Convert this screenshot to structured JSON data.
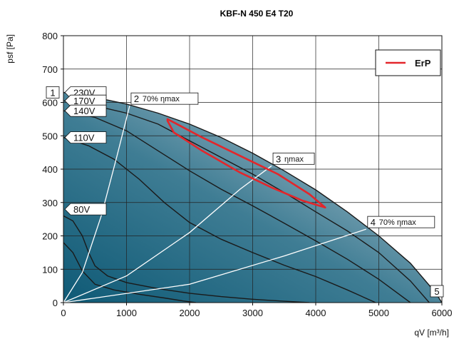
{
  "chart_data": {
    "type": "line",
    "title": "KBF-N 450 E4 T20",
    "xlabel": "qV [m³/h]",
    "ylabel": "psf [Pa]",
    "xlim": [
      0,
      6000
    ],
    "ylim": [
      0,
      800
    ],
    "x_ticks": [
      "0",
      "1000",
      "2000",
      "3000",
      "4000",
      "5000",
      "6000"
    ],
    "y_ticks": [
      "0",
      "100",
      "200",
      "300",
      "400",
      "500",
      "600",
      "700",
      "800"
    ],
    "grid": true,
    "legend": {
      "position": "top-right",
      "entries": [
        {
          "name": "ErP",
          "color": "#e3262b"
        }
      ]
    },
    "colors": {
      "gradient_dark": "#0f5a76",
      "gradient_light": "#c9d2dc",
      "curves": "#1a1a1a",
      "efficiency_lines": "#ffffff",
      "erp": "#e3262b"
    },
    "boundary": [
      [
        0,
        630
      ],
      [
        500,
        615
      ],
      [
        1000,
        595
      ],
      [
        1500,
        568
      ],
      [
        2000,
        535
      ],
      [
        2500,
        495
      ],
      [
        3000,
        448
      ],
      [
        3500,
        395
      ],
      [
        4000,
        338
      ],
      [
        4500,
        272
      ],
      [
        5000,
        200
      ],
      [
        5500,
        118
      ],
      [
        5900,
        30
      ],
      [
        6000,
        0
      ]
    ],
    "speed_curves": [
      {
        "label": "230V",
        "points": [
          [
            0,
            630
          ],
          [
            500,
            615
          ],
          [
            1000,
            595
          ],
          [
            1500,
            568
          ],
          [
            2000,
            535
          ],
          [
            2500,
            495
          ],
          [
            3000,
            448
          ],
          [
            3500,
            395
          ],
          [
            4000,
            338
          ],
          [
            4500,
            272
          ],
          [
            5000,
            200
          ],
          [
            5500,
            118
          ],
          [
            5900,
            30
          ],
          [
            6000,
            0
          ]
        ]
      },
      {
        "label": "170V",
        "points": [
          [
            0,
            605
          ],
          [
            500,
            590
          ],
          [
            1000,
            568
          ],
          [
            1500,
            535
          ],
          [
            2000,
            485
          ],
          [
            2500,
            435
          ],
          [
            3000,
            385
          ],
          [
            3500,
            330
          ],
          [
            4000,
            272
          ],
          [
            4500,
            215
          ],
          [
            5000,
            150
          ],
          [
            5500,
            65
          ],
          [
            5800,
            0
          ]
        ]
      },
      {
        "label": "140V",
        "points": [
          [
            0,
            575
          ],
          [
            500,
            555
          ],
          [
            1000,
            515
          ],
          [
            1500,
            455
          ],
          [
            2000,
            395
          ],
          [
            2500,
            340
          ],
          [
            3000,
            290
          ],
          [
            3500,
            238
          ],
          [
            4000,
            185
          ],
          [
            4500,
            130
          ],
          [
            5000,
            70
          ],
          [
            5500,
            0
          ]
        ]
      },
      {
        "label": "110V",
        "points": [
          [
            0,
            495
          ],
          [
            400,
            470
          ],
          [
            800,
            430
          ],
          [
            1200,
            370
          ],
          [
            1600,
            300
          ],
          [
            2000,
            240
          ],
          [
            2500,
            190
          ],
          [
            3000,
            150
          ],
          [
            3500,
            112
          ],
          [
            4000,
            78
          ],
          [
            4500,
            38
          ],
          [
            4950,
            0
          ]
        ]
      },
      {
        "label": "80V",
        "points": [
          [
            0,
            260
          ],
          [
            150,
            245
          ],
          [
            300,
            200
          ],
          [
            400,
            150
          ],
          [
            500,
            110
          ],
          [
            700,
            80
          ],
          [
            1000,
            60
          ],
          [
            1500,
            42
          ],
          [
            2000,
            28
          ],
          [
            2500,
            18
          ],
          [
            3000,
            10
          ],
          [
            3500,
            4
          ],
          [
            3900,
            0
          ]
        ]
      },
      {
        "label": "",
        "points": [
          [
            0,
            180
          ],
          [
            150,
            150
          ],
          [
            300,
            95
          ],
          [
            500,
            55
          ],
          [
            800,
            38
          ],
          [
            1200,
            25
          ],
          [
            1600,
            14
          ],
          [
            1900,
            5
          ],
          [
            2100,
            0
          ]
        ]
      }
    ],
    "efficiency_lines": [
      {
        "marker": "2",
        "label": "70% ηmax",
        "points": [
          [
            0,
            0
          ],
          [
            300,
            90
          ],
          [
            600,
            260
          ],
          [
            850,
            440
          ],
          [
            1050,
            590
          ]
        ]
      },
      {
        "marker": "3",
        "label": "ηmax",
        "points": [
          [
            0,
            0
          ],
          [
            1000,
            80
          ],
          [
            2000,
            210
          ],
          [
            2800,
            340
          ],
          [
            3300,
            410
          ]
        ]
      },
      {
        "marker": "4",
        "label": "70% ηmax",
        "points": [
          [
            0,
            0
          ],
          [
            2000,
            55
          ],
          [
            3500,
            140
          ],
          [
            4800,
            220
          ]
        ]
      }
    ],
    "erp_region": [
      [
        1650,
        545
      ],
      [
        1750,
        510
      ],
      [
        2200,
        455
      ],
      [
        2800,
        390
      ],
      [
        3300,
        345
      ],
      [
        3800,
        305
      ],
      [
        4150,
        285
      ],
      [
        3900,
        325
      ],
      [
        3400,
        385
      ],
      [
        2800,
        440
      ],
      [
        2200,
        495
      ],
      [
        1850,
        530
      ],
      [
        1650,
        550
      ]
    ],
    "markers": [
      {
        "id": "1",
        "x": 0,
        "y": 630,
        "text": "230V"
      },
      {
        "id": "",
        "x": 0,
        "y": 605,
        "text": "170V"
      },
      {
        "id": "",
        "x": 0,
        "y": 575,
        "text": "140V"
      },
      {
        "id": "",
        "x": 0,
        "y": 495,
        "text": "110V"
      },
      {
        "id": "",
        "x": 0,
        "y": 280,
        "text": "80V"
      },
      {
        "id": "5",
        "x": 6000,
        "y": 30,
        "text": ""
      }
    ]
  }
}
